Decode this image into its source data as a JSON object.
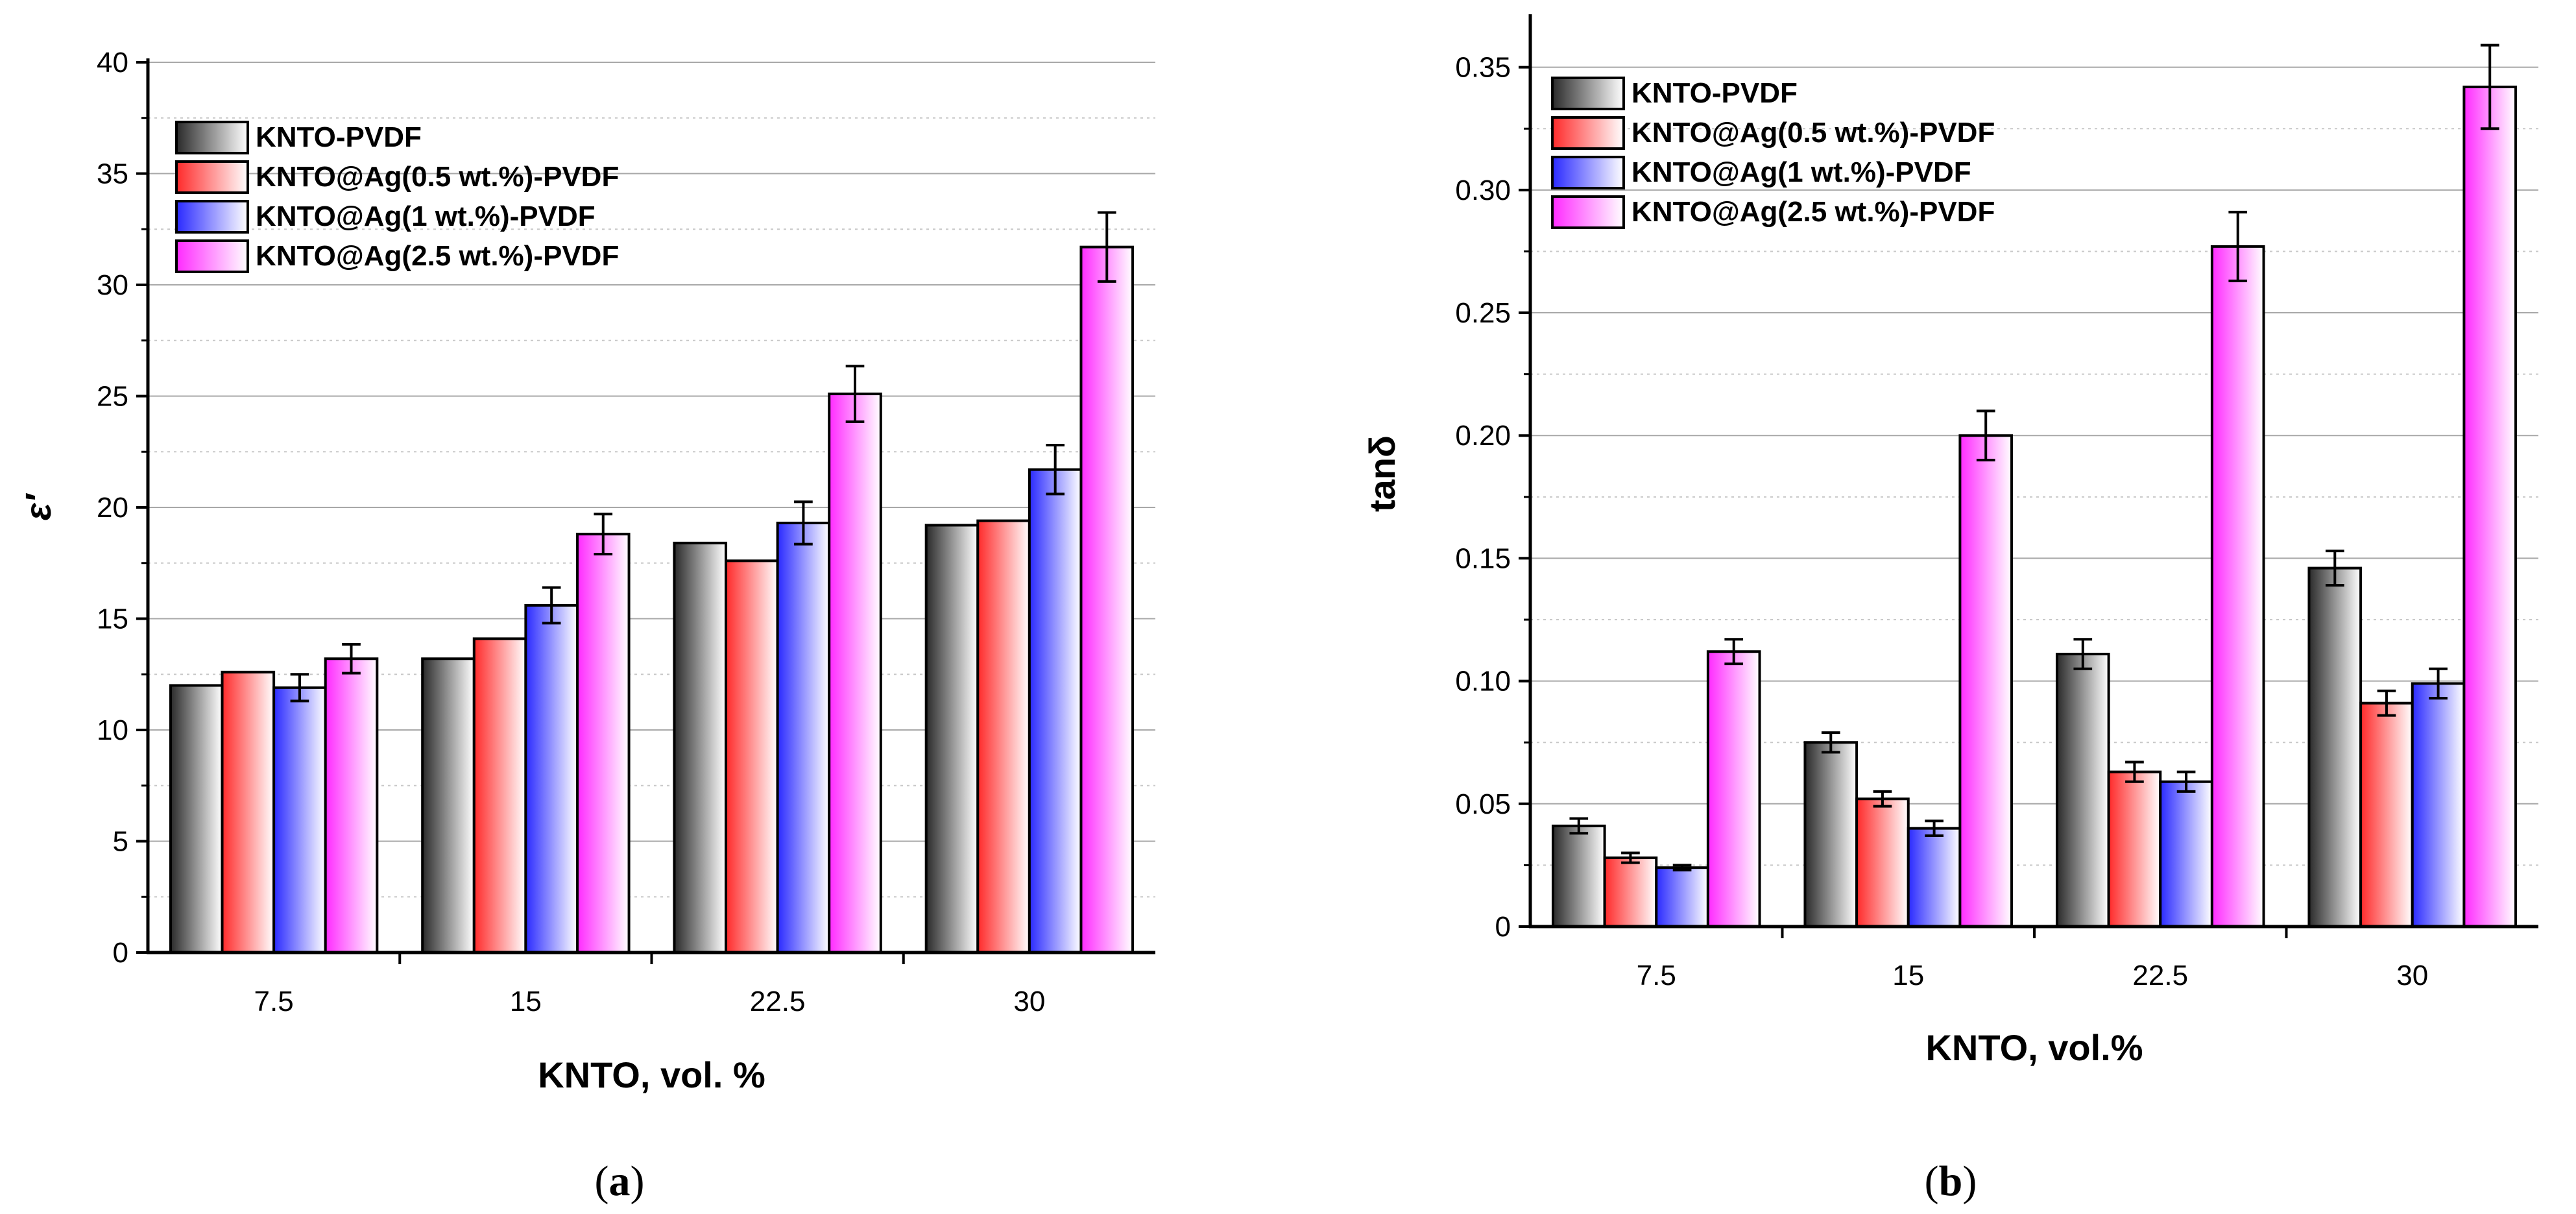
{
  "chart_data": [
    {
      "type": "bar",
      "panel_id": "a",
      "caption": "a",
      "xlabel": "KNTO, vol. %",
      "ylabel": "ε′",
      "ylim": [
        0,
        40
      ],
      "yticks": [
        0,
        5,
        10,
        15,
        20,
        25,
        30,
        35,
        40
      ],
      "ytick_labels": [
        "0",
        "5",
        "10",
        "15",
        "20",
        "25",
        "30",
        "35",
        "40"
      ],
      "categories": [
        "7.5",
        "15",
        "22.5",
        "30"
      ],
      "legend_position": "top-left",
      "grid": true,
      "series": [
        {
          "name": "KNTO-PVDF",
          "color": "#2a2a2a",
          "values": [
            12.0,
            13.2,
            18.4,
            19.2
          ],
          "errors": [
            0,
            0,
            0,
            0
          ]
        },
        {
          "name": "KNTO@Ag(0.5 wt.%)-PVDF",
          "color": "#ff2a2a",
          "values": [
            12.6,
            14.1,
            17.6,
            19.4
          ],
          "errors": [
            0,
            0,
            0,
            0
          ]
        },
        {
          "name": "KNTO@Ag(1 wt.%)-PVDF",
          "color": "#2a2aff",
          "values": [
            11.9,
            15.6,
            19.3,
            21.7
          ],
          "errors": [
            0.6,
            0.8,
            0.95,
            1.1
          ]
        },
        {
          "name": "KNTO@Ag(2.5 wt.%)-PVDF",
          "color": "#ff2aff",
          "values": [
            13.2,
            18.8,
            25.1,
            31.7
          ],
          "errors": [
            0.65,
            0.9,
            1.25,
            1.55
          ]
        }
      ]
    },
    {
      "type": "bar",
      "panel_id": "b",
      "caption": "b",
      "xlabel": "KNTO, vol.%",
      "ylabel": "tanδ",
      "ylim": [
        0,
        0.37
      ],
      "yticks": [
        0,
        0.05,
        0.1,
        0.15,
        0.2,
        0.25,
        0.3,
        0.35
      ],
      "ytick_labels": [
        "0",
        "0.05",
        "0.10",
        "0.15",
        "0.20",
        "0.25",
        "0.30",
        "0.35"
      ],
      "categories": [
        "7.5",
        "15",
        "22.5",
        "30"
      ],
      "legend_position": "top-left",
      "grid": true,
      "series": [
        {
          "name": "KNTO-PVDF",
          "color": "#2a2a2a",
          "values": [
            0.041,
            0.075,
            0.111,
            0.146
          ],
          "errors": [
            0.003,
            0.004,
            0.006,
            0.007
          ]
        },
        {
          "name": "KNTO@Ag(0.5 wt.%)-PVDF",
          "color": "#ff2a2a",
          "values": [
            0.028,
            0.052,
            0.063,
            0.091
          ],
          "errors": [
            0.002,
            0.003,
            0.004,
            0.005
          ]
        },
        {
          "name": "KNTO@Ag(1 wt.%)-PVDF",
          "color": "#2a2aff",
          "values": [
            0.024,
            0.04,
            0.059,
            0.099
          ],
          "errors": [
            0.001,
            0.003,
            0.004,
            0.006
          ]
        },
        {
          "name": "KNTO@Ag(2.5 wt.%)-PVDF",
          "color": "#ff2aff",
          "values": [
            0.112,
            0.2,
            0.277,
            0.342
          ],
          "errors": [
            0.005,
            0.01,
            0.014,
            0.017
          ]
        }
      ]
    }
  ]
}
